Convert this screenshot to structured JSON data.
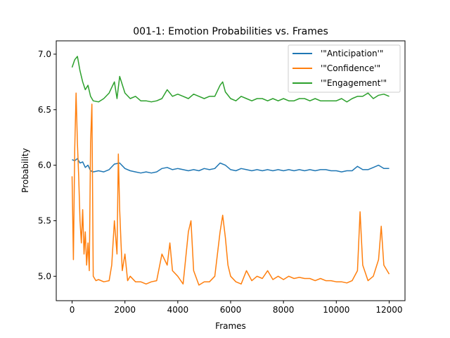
{
  "chart_data": {
    "type": "line",
    "title": "001-1: Emotion Probabilities vs. Frames",
    "xlabel": "Frames",
    "ylabel": "Probability",
    "xlim": [
      -600,
      12600
    ],
    "ylim": [
      4.78,
      7.12
    ],
    "xticks": [
      0,
      2000,
      4000,
      6000,
      8000,
      10000,
      12000
    ],
    "yticks": [
      5.0,
      5.5,
      6.0,
      6.5,
      7.0
    ],
    "ytick_labels": [
      "5.0",
      "5.5",
      "6.0",
      "6.5",
      "7.0"
    ],
    "grid": false,
    "legend_position": "top-right",
    "series": [
      {
        "name": "'\"Anticipation'\"",
        "color": "#1f77b4",
        "x": [
          0,
          100,
          200,
          300,
          400,
          500,
          600,
          700,
          800,
          1000,
          1200,
          1400,
          1600,
          1800,
          2000,
          2200,
          2400,
          2600,
          2800,
          3000,
          3200,
          3400,
          3600,
          3800,
          4000,
          4200,
          4400,
          4600,
          4800,
          5000,
          5200,
          5400,
          5600,
          5800,
          6000,
          6200,
          6400,
          6600,
          6800,
          7000,
          7200,
          7400,
          7600,
          7800,
          8000,
          8200,
          8400,
          8600,
          8800,
          9000,
          9200,
          9400,
          9600,
          9800,
          10000,
          10200,
          10400,
          10600,
          10800,
          11000,
          11200,
          11400,
          11600,
          11800,
          12000
        ],
        "values": [
          6.05,
          6.04,
          6.06,
          6.02,
          6.03,
          5.98,
          6.0,
          5.95,
          5.94,
          5.95,
          5.94,
          5.96,
          6.01,
          6.02,
          5.97,
          5.95,
          5.94,
          5.93,
          5.94,
          5.93,
          5.94,
          5.97,
          5.98,
          5.96,
          5.97,
          5.96,
          5.95,
          5.96,
          5.95,
          5.97,
          5.96,
          5.97,
          6.02,
          6.0,
          5.96,
          5.95,
          5.97,
          5.96,
          5.95,
          5.96,
          5.95,
          5.96,
          5.95,
          5.96,
          5.95,
          5.96,
          5.95,
          5.96,
          5.95,
          5.96,
          5.95,
          5.96,
          5.96,
          5.95,
          5.95,
          5.94,
          5.95,
          5.95,
          5.99,
          5.96,
          5.96,
          5.98,
          6.0,
          5.97,
          5.97
        ]
      },
      {
        "name": "'\"Confidence'\"",
        "color": "#ff7f0e",
        "x": [
          0,
          50,
          100,
          150,
          200,
          250,
          300,
          350,
          400,
          450,
          500,
          550,
          600,
          650,
          700,
          750,
          800,
          900,
          1000,
          1200,
          1400,
          1500,
          1600,
          1700,
          1750,
          1800,
          1850,
          1900,
          2000,
          2100,
          2200,
          2400,
          2600,
          2800,
          3000,
          3200,
          3400,
          3600,
          3700,
          3800,
          4000,
          4200,
          4400,
          4500,
          4600,
          4800,
          5000,
          5200,
          5400,
          5600,
          5700,
          5800,
          5900,
          6000,
          6200,
          6400,
          6600,
          6800,
          7000,
          7200,
          7400,
          7600,
          7800,
          8000,
          8200,
          8400,
          8600,
          8800,
          9000,
          9200,
          9400,
          9600,
          9800,
          10000,
          10200,
          10400,
          10600,
          10800,
          10900,
          11000,
          11200,
          11400,
          11600,
          11700,
          11800,
          12000
        ],
        "values": [
          5.9,
          5.15,
          6.15,
          6.65,
          6.2,
          5.9,
          5.5,
          5.3,
          5.6,
          5.2,
          5.4,
          5.1,
          5.3,
          5.05,
          6.2,
          6.55,
          5.0,
          4.96,
          4.97,
          4.95,
          4.96,
          5.1,
          5.5,
          5.2,
          6.1,
          5.6,
          5.3,
          5.05,
          5.2,
          4.96,
          5.0,
          4.95,
          4.95,
          4.93,
          4.95,
          4.96,
          5.2,
          5.1,
          5.3,
          5.05,
          5.0,
          4.93,
          5.4,
          5.5,
          5.05,
          4.92,
          4.95,
          4.95,
          5.0,
          5.4,
          5.55,
          5.35,
          5.1,
          5.0,
          4.95,
          4.93,
          5.05,
          4.96,
          5.0,
          4.98,
          5.05,
          4.97,
          5.0,
          4.97,
          5.0,
          4.98,
          4.99,
          4.98,
          4.98,
          4.96,
          4.98,
          4.96,
          4.96,
          4.95,
          4.95,
          4.94,
          4.96,
          5.05,
          5.58,
          5.1,
          4.96,
          5.0,
          5.15,
          5.45,
          5.1,
          5.02
        ]
      },
      {
        "name": "'\"Engagement'\"",
        "color": "#2ca02c",
        "x": [
          0,
          100,
          200,
          300,
          400,
          500,
          600,
          700,
          800,
          1000,
          1200,
          1400,
          1500,
          1600,
          1700,
          1800,
          2000,
          2200,
          2400,
          2600,
          2800,
          3000,
          3200,
          3400,
          3600,
          3800,
          4000,
          4200,
          4400,
          4600,
          4800,
          5000,
          5200,
          5400,
          5600,
          5700,
          5800,
          6000,
          6200,
          6400,
          6600,
          6800,
          7000,
          7200,
          7400,
          7600,
          7800,
          8000,
          8200,
          8400,
          8600,
          8800,
          9000,
          9200,
          9400,
          9600,
          9800,
          10000,
          10200,
          10400,
          10600,
          10800,
          11000,
          11200,
          11400,
          11600,
          11800,
          12000
        ],
        "values": [
          6.88,
          6.95,
          6.98,
          6.85,
          6.75,
          6.68,
          6.72,
          6.62,
          6.58,
          6.57,
          6.6,
          6.65,
          6.7,
          6.75,
          6.6,
          6.8,
          6.65,
          6.6,
          6.62,
          6.58,
          6.58,
          6.57,
          6.58,
          6.6,
          6.68,
          6.62,
          6.64,
          6.62,
          6.6,
          6.64,
          6.62,
          6.6,
          6.62,
          6.62,
          6.72,
          6.75,
          6.66,
          6.6,
          6.58,
          6.62,
          6.6,
          6.58,
          6.6,
          6.6,
          6.58,
          6.6,
          6.58,
          6.6,
          6.58,
          6.58,
          6.6,
          6.6,
          6.58,
          6.6,
          6.58,
          6.58,
          6.58,
          6.58,
          6.6,
          6.57,
          6.6,
          6.62,
          6.62,
          6.65,
          6.6,
          6.63,
          6.64,
          6.62
        ]
      }
    ]
  }
}
